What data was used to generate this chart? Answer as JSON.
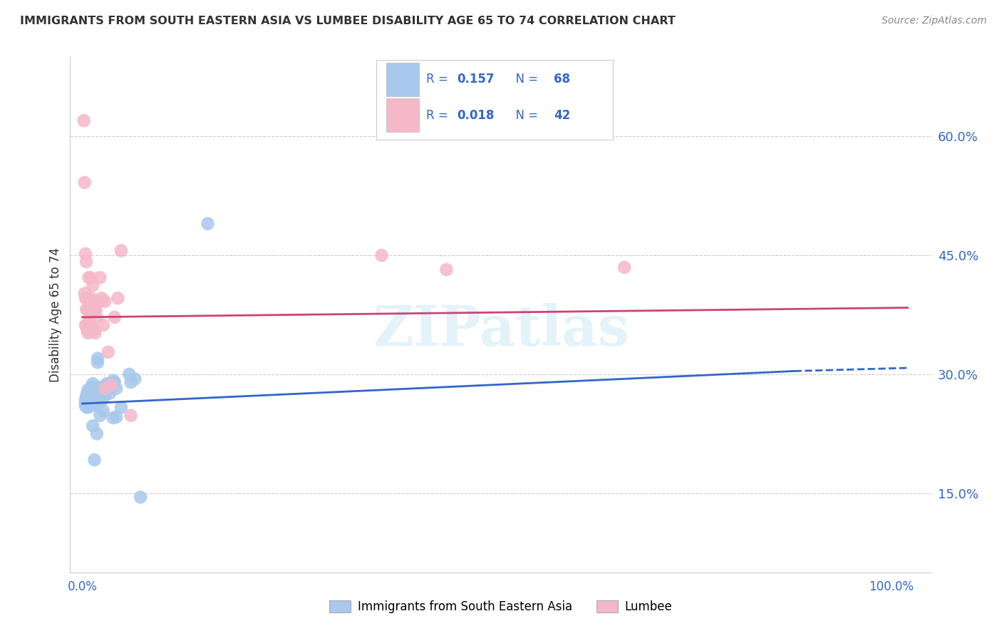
{
  "title": "IMMIGRANTS FROM SOUTH EASTERN ASIA VS LUMBEE DISABILITY AGE 65 TO 74 CORRELATION CHART",
  "source": "Source: ZipAtlas.com",
  "ylabel": "Disability Age 65 to 74",
  "watermark": "ZIPatlas",
  "legend_label_blue": "Immigrants from South Eastern Asia",
  "legend_label_pink": "Lumbee",
  "ytick_vals": [
    0.15,
    0.3,
    0.45,
    0.6
  ],
  "ytick_labels": [
    "15.0%",
    "30.0%",
    "45.0%",
    "60.0%"
  ],
  "blue_color": "#A8C8EC",
  "pink_color": "#F5B8C8",
  "line_blue": "#3366CC",
  "line_pink": "#CC4477",
  "background": "#FFFFFF",
  "grid_color": "#CCCCCC",
  "blue_scatter": [
    [
      0.004,
      0.268
    ],
    [
      0.004,
      0.263
    ],
    [
      0.004,
      0.26
    ],
    [
      0.004,
      0.265
    ],
    [
      0.005,
      0.268
    ],
    [
      0.005,
      0.272
    ],
    [
      0.005,
      0.26
    ],
    [
      0.005,
      0.27
    ],
    [
      0.006,
      0.265
    ],
    [
      0.006,
      0.258
    ],
    [
      0.006,
      0.262
    ],
    [
      0.006,
      0.276
    ],
    [
      0.007,
      0.27
    ],
    [
      0.007,
      0.28
    ],
    [
      0.007,
      0.268
    ],
    [
      0.007,
      0.26
    ],
    [
      0.008,
      0.274
    ],
    [
      0.008,
      0.265
    ],
    [
      0.009,
      0.27
    ],
    [
      0.009,
      0.274
    ],
    [
      0.01,
      0.262
    ],
    [
      0.01,
      0.28
    ],
    [
      0.01,
      0.268
    ],
    [
      0.011,
      0.284
    ],
    [
      0.011,
      0.278
    ],
    [
      0.012,
      0.26
    ],
    [
      0.012,
      0.265
    ],
    [
      0.013,
      0.275
    ],
    [
      0.013,
      0.288
    ],
    [
      0.014,
      0.272
    ],
    [
      0.014,
      0.265
    ],
    [
      0.015,
      0.278
    ],
    [
      0.015,
      0.27
    ],
    [
      0.016,
      0.274
    ],
    [
      0.017,
      0.262
    ],
    [
      0.017,
      0.268
    ],
    [
      0.018,
      0.284
    ],
    [
      0.019,
      0.32
    ],
    [
      0.019,
      0.315
    ],
    [
      0.02,
      0.272
    ],
    [
      0.021,
      0.265
    ],
    [
      0.022,
      0.28
    ],
    [
      0.023,
      0.274
    ],
    [
      0.024,
      0.282
    ],
    [
      0.025,
      0.268
    ],
    [
      0.026,
      0.276
    ],
    [
      0.027,
      0.284
    ],
    [
      0.028,
      0.274
    ],
    [
      0.03,
      0.288
    ],
    [
      0.032,
      0.282
    ],
    [
      0.034,
      0.276
    ],
    [
      0.036,
      0.284
    ],
    [
      0.038,
      0.292
    ],
    [
      0.04,
      0.29
    ],
    [
      0.042,
      0.282
    ],
    [
      0.038,
      0.245
    ],
    [
      0.015,
      0.192
    ],
    [
      0.018,
      0.225
    ],
    [
      0.013,
      0.235
    ],
    [
      0.026,
      0.254
    ],
    [
      0.022,
      0.248
    ],
    [
      0.072,
      0.145
    ],
    [
      0.155,
      0.49
    ],
    [
      0.058,
      0.3
    ],
    [
      0.048,
      0.258
    ],
    [
      0.042,
      0.246
    ],
    [
      0.065,
      0.294
    ],
    [
      0.06,
      0.29
    ]
  ],
  "pink_scatter": [
    [
      0.002,
      0.62
    ],
    [
      0.003,
      0.542
    ],
    [
      0.003,
      0.402
    ],
    [
      0.004,
      0.396
    ],
    [
      0.004,
      0.362
    ],
    [
      0.004,
      0.452
    ],
    [
      0.005,
      0.442
    ],
    [
      0.005,
      0.382
    ],
    [
      0.005,
      0.396
    ],
    [
      0.006,
      0.362
    ],
    [
      0.006,
      0.356
    ],
    [
      0.007,
      0.352
    ],
    [
      0.007,
      0.382
    ],
    [
      0.008,
      0.422
    ],
    [
      0.008,
      0.382
    ],
    [
      0.009,
      0.376
    ],
    [
      0.009,
      0.366
    ],
    [
      0.01,
      0.362
    ],
    [
      0.01,
      0.422
    ],
    [
      0.011,
      0.396
    ],
    [
      0.012,
      0.392
    ],
    [
      0.013,
      0.412
    ],
    [
      0.014,
      0.356
    ],
    [
      0.015,
      0.382
    ],
    [
      0.016,
      0.352
    ],
    [
      0.017,
      0.382
    ],
    [
      0.018,
      0.372
    ],
    [
      0.02,
      0.392
    ],
    [
      0.022,
      0.422
    ],
    [
      0.024,
      0.396
    ],
    [
      0.026,
      0.362
    ],
    [
      0.028,
      0.282
    ],
    [
      0.028,
      0.392
    ],
    [
      0.032,
      0.328
    ],
    [
      0.036,
      0.286
    ],
    [
      0.04,
      0.372
    ],
    [
      0.044,
      0.396
    ],
    [
      0.048,
      0.456
    ],
    [
      0.37,
      0.45
    ],
    [
      0.45,
      0.432
    ],
    [
      0.67,
      0.435
    ],
    [
      0.06,
      0.248
    ]
  ],
  "blue_trend": [
    0.0,
    0.263,
    0.88,
    0.304
  ],
  "blue_extend": [
    0.88,
    0.304,
    1.02,
    0.308
  ],
  "pink_trend": [
    0.0,
    0.372,
    1.02,
    0.384
  ],
  "xlim": [
    -0.015,
    1.05
  ],
  "ylim": [
    0.05,
    0.7
  ]
}
